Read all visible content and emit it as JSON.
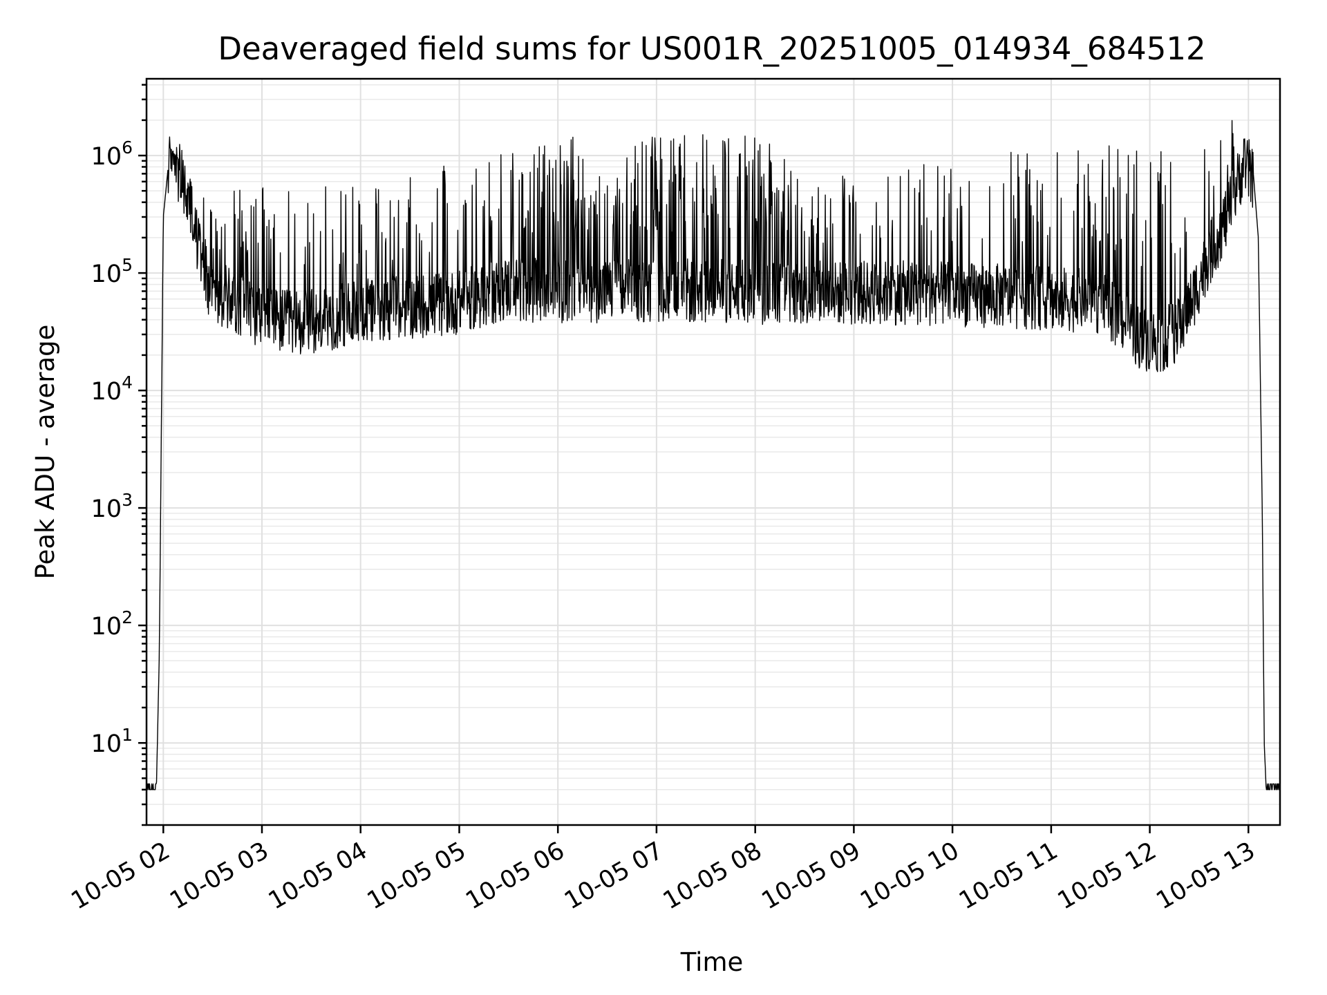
{
  "chart_data": {
    "type": "line",
    "title": "Deaveraged field sums for US001R_20251005_014934_684512",
    "xlabel": "Time",
    "ylabel": "Peak ADU - average",
    "yscale": "log",
    "ylim": [
      2,
      4500000
    ],
    "xlim_hours": [
      1.83,
      13.32
    ],
    "grid": true,
    "x_ticks": [
      {
        "hour": 2,
        "label": "10-05 02"
      },
      {
        "hour": 3,
        "label": "10-05 03"
      },
      {
        "hour": 4,
        "label": "10-05 04"
      },
      {
        "hour": 5,
        "label": "10-05 05"
      },
      {
        "hour": 6,
        "label": "10-05 06"
      },
      {
        "hour": 7,
        "label": "10-05 07"
      },
      {
        "hour": 8,
        "label": "10-05 08"
      },
      {
        "hour": 9,
        "label": "10-05 09"
      },
      {
        "hour": 10,
        "label": "10-05 10"
      },
      {
        "hour": 11,
        "label": "10-05 11"
      },
      {
        "hour": 12,
        "label": "10-05 12"
      },
      {
        "hour": 13,
        "label": "10-05 13"
      }
    ],
    "y_ticks": [
      {
        "value": 10,
        "base": "10",
        "exp": "1"
      },
      {
        "value": 100,
        "base": "10",
        "exp": "2"
      },
      {
        "value": 1000,
        "base": "10",
        "exp": "3"
      },
      {
        "value": 10000,
        "base": "10",
        "exp": "4"
      },
      {
        "value": 100000,
        "base": "10",
        "exp": "5"
      },
      {
        "value": 1000000,
        "base": "10",
        "exp": "6"
      }
    ],
    "series": [
      {
        "name": "deaveraged field sums",
        "baseline_envelope": [
          [
            1.83,
            4
          ],
          [
            1.93,
            4
          ],
          [
            1.96,
            60
          ],
          [
            2.0,
            300000
          ],
          [
            2.05,
            800000
          ],
          [
            2.1,
            1000000
          ],
          [
            2.2,
            600000
          ],
          [
            2.3,
            300000
          ],
          [
            2.4,
            120000
          ],
          [
            2.5,
            70000
          ],
          [
            2.7,
            65000
          ],
          [
            3.0,
            45000
          ],
          [
            3.3,
            40000
          ],
          [
            3.6,
            42000
          ],
          [
            4.0,
            50000
          ],
          [
            4.5,
            55000
          ],
          [
            5.0,
            60000
          ],
          [
            5.5,
            80000
          ],
          [
            5.8,
            75000
          ],
          [
            6.5,
            75000
          ],
          [
            7.5,
            75000
          ],
          [
            8.5,
            72000
          ],
          [
            9.5,
            72000
          ],
          [
            10.5,
            68000
          ],
          [
            11.0,
            65000
          ],
          [
            11.5,
            60000
          ],
          [
            11.7,
            45000
          ],
          [
            11.9,
            30000
          ],
          [
            12.1,
            28000
          ],
          [
            12.3,
            35000
          ],
          [
            12.45,
            70000
          ],
          [
            12.6,
            150000
          ],
          [
            12.8,
            350000
          ],
          [
            12.95,
            900000
          ],
          [
            13.05,
            700000
          ],
          [
            13.1,
            200000
          ],
          [
            13.14,
            1000
          ],
          [
            13.16,
            10
          ],
          [
            13.18,
            4
          ],
          [
            13.32,
            4
          ]
        ],
        "peak_envelope": [
          [
            2.0,
            1500000
          ],
          [
            2.3,
            600000
          ],
          [
            2.6,
            500000
          ],
          [
            3.0,
            550000
          ],
          [
            3.5,
            550000
          ],
          [
            4.0,
            550000
          ],
          [
            4.5,
            650000
          ],
          [
            5.0,
            900000
          ],
          [
            5.4,
            1100000
          ],
          [
            5.7,
            1300000
          ],
          [
            6.0,
            1450000
          ],
          [
            6.5,
            1550000
          ],
          [
            7.0,
            1600000
          ],
          [
            7.5,
            1550000
          ],
          [
            8.0,
            1500000
          ],
          [
            8.2,
            1450000
          ],
          [
            8.5,
            700000
          ],
          [
            9.0,
            800000
          ],
          [
            9.5,
            900000
          ],
          [
            10.0,
            900000
          ],
          [
            10.5,
            1000000
          ],
          [
            11.0,
            1400000
          ],
          [
            11.5,
            1300000
          ],
          [
            12.0,
            1100000
          ],
          [
            12.5,
            1100000
          ],
          [
            12.85,
            2500000
          ],
          [
            13.0,
            1200000
          ]
        ],
        "minimum_observed": 20000,
        "maximum_observed": 2500000
      }
    ]
  }
}
